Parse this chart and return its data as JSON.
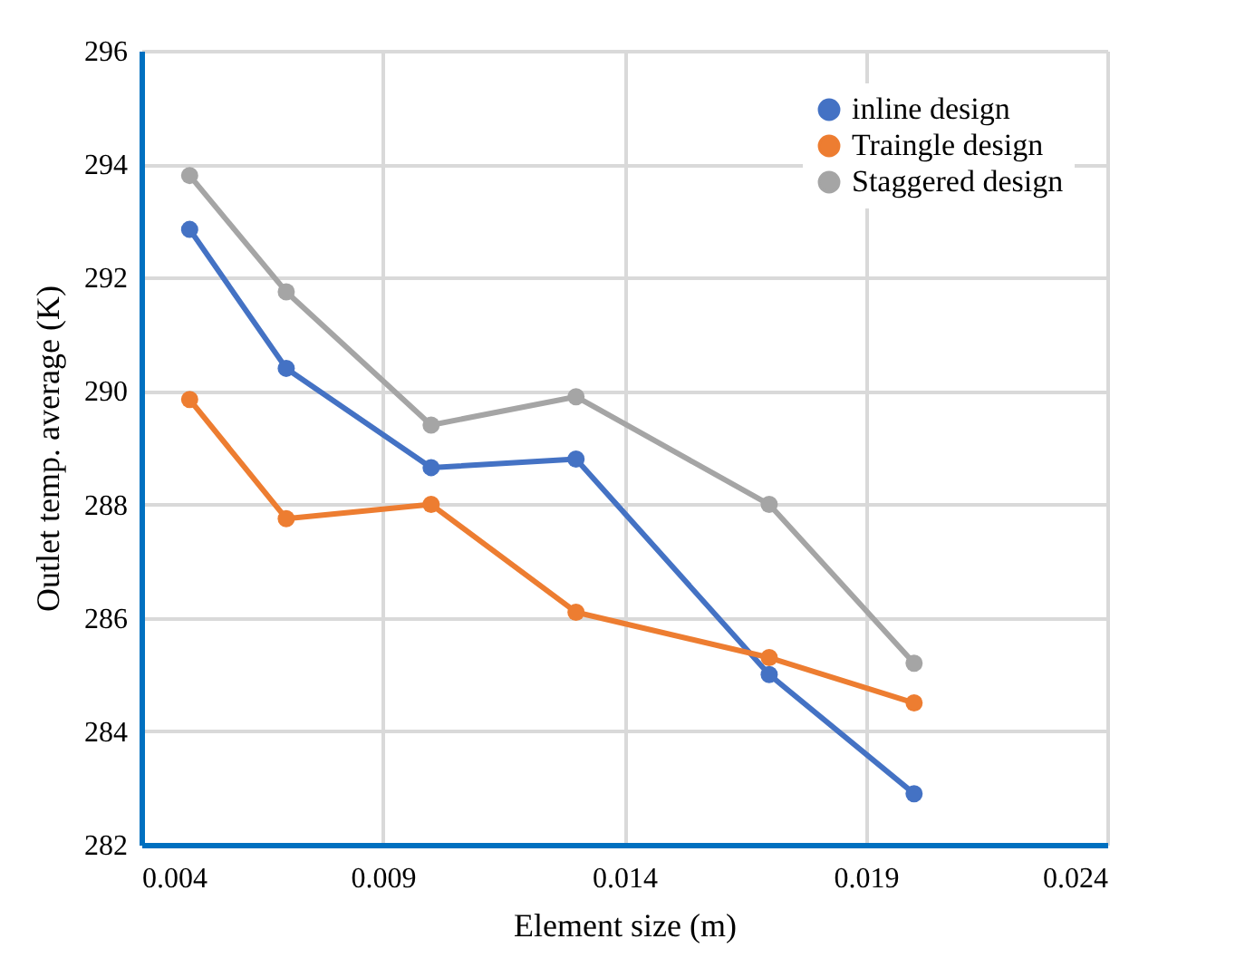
{
  "chart_data": {
    "type": "line",
    "xlabel": "Element size (m)",
    "ylabel": "Outlet temp. average  (K)",
    "x": [
      0.005,
      0.007,
      0.01,
      0.013,
      0.017,
      0.02
    ],
    "series": [
      {
        "name": "inline design",
        "color": "#4472c4",
        "values": [
          292.85,
          290.4,
          288.65,
          288.8,
          285.0,
          282.9
        ]
      },
      {
        "name": "Traingle design",
        "color": "#ed7d31",
        "values": [
          289.85,
          287.75,
          288.0,
          286.1,
          285.3,
          284.5
        ]
      },
      {
        "name": "Staggered design",
        "color": "#a5a5a5",
        "values": [
          293.8,
          291.75,
          289.4,
          289.9,
          288.0,
          285.2
        ]
      }
    ],
    "xlim": [
      0.004,
      0.024
    ],
    "xticks": [
      0.004,
      0.009,
      0.014,
      0.019,
      0.024
    ],
    "ylim": [
      282,
      296
    ],
    "yticks": [
      282,
      284,
      286,
      288,
      290,
      292,
      294,
      296
    ],
    "grid": true,
    "legend": "top right",
    "marker": "circle",
    "line_style": "solid"
  }
}
